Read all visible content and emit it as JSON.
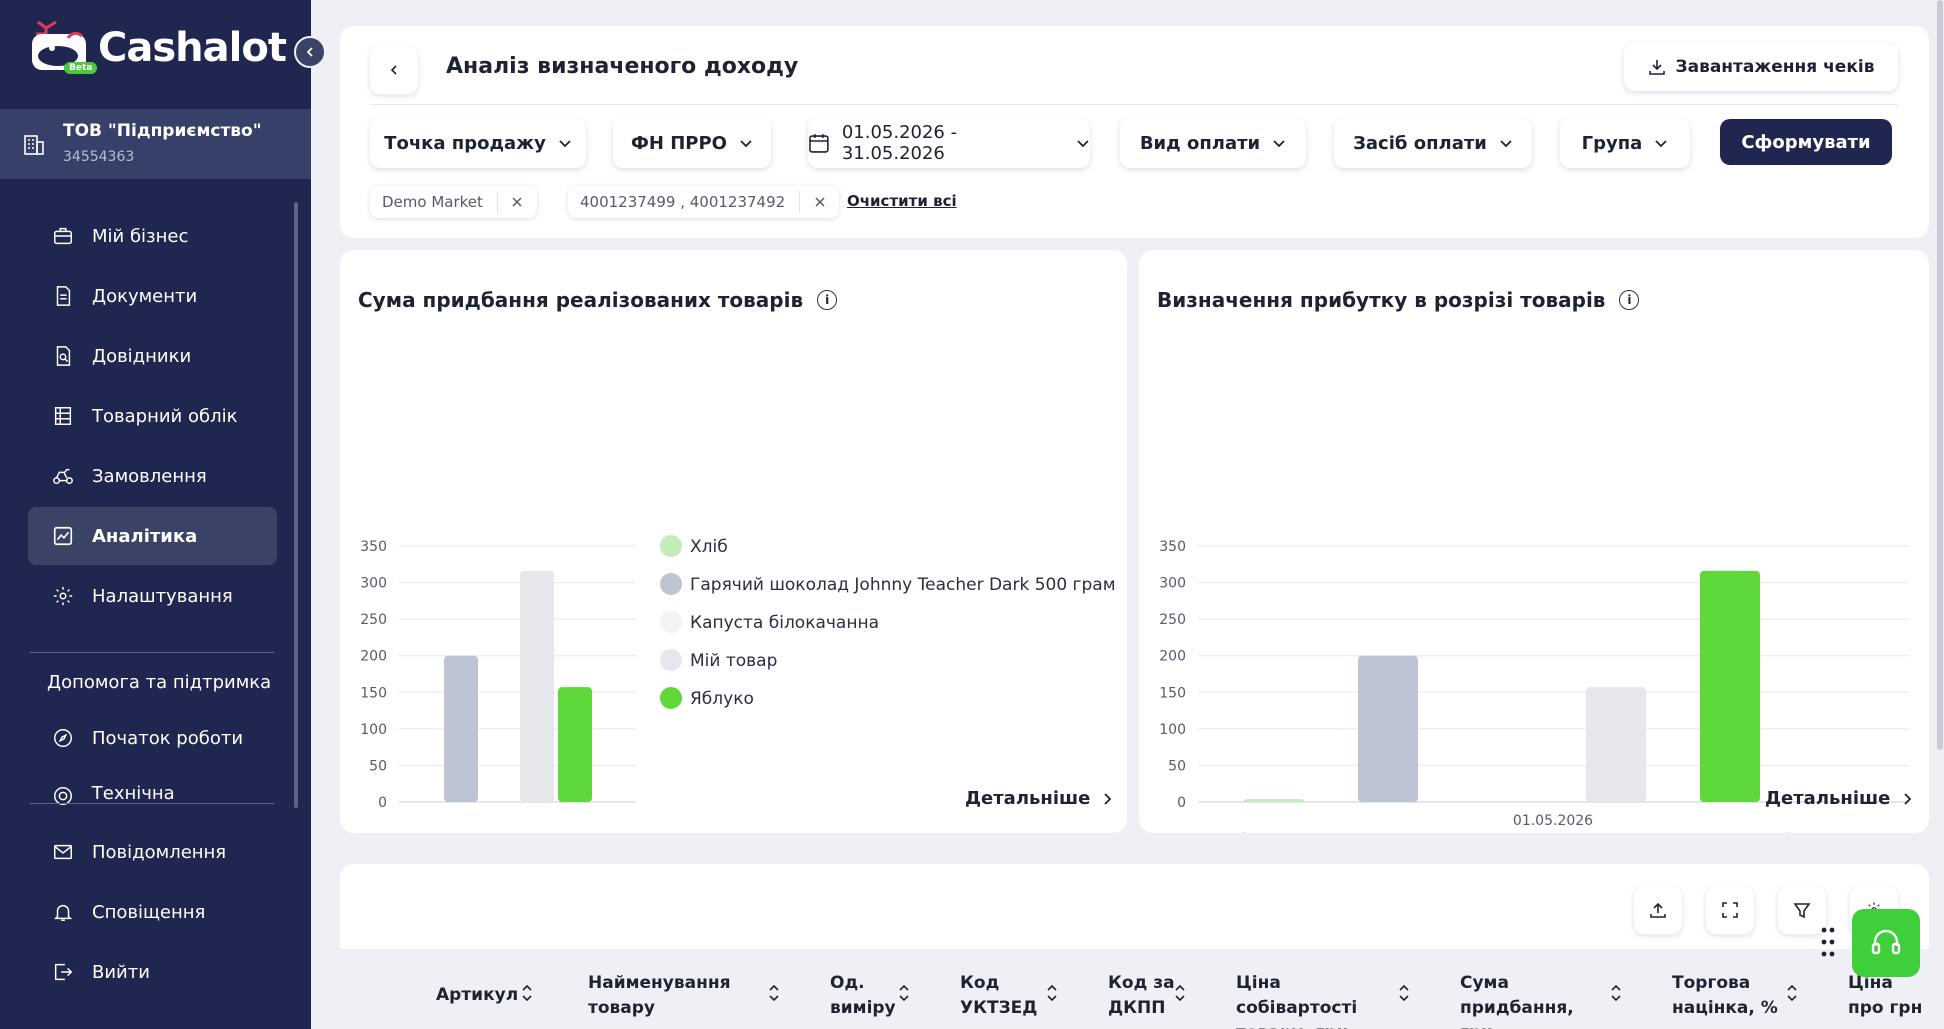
{
  "app": {
    "brand": "Cashalot",
    "beta": "Beta",
    "company": {
      "name": "ТОВ \"Підприємство\"",
      "code": "34554363"
    }
  },
  "sidebar": {
    "items": [
      {
        "label": "Мій бізнес",
        "icon": "briefcase-icon"
      },
      {
        "label": "Документи",
        "icon": "document-icon"
      },
      {
        "label": "Довідники",
        "icon": "directory-icon"
      },
      {
        "label": "Товарний облік",
        "icon": "warehouse-icon"
      },
      {
        "label": "Замовлення",
        "icon": "delivery-icon"
      },
      {
        "label": "Аналітика",
        "icon": "analytics-icon",
        "active": true
      },
      {
        "label": "Налаштування",
        "icon": "gear-icon"
      }
    ],
    "help_title": "Допомога та підтримка",
    "help_items": [
      {
        "label": "Початок роботи",
        "icon": "compass-icon"
      },
      {
        "label": "Технічна підтримка",
        "icon": "support-icon"
      }
    ],
    "bottom_items": [
      {
        "label": "Повідомлення",
        "icon": "mail-icon"
      },
      {
        "label": "Сповіщення",
        "icon": "bell-icon"
      },
      {
        "label": "Вийти",
        "icon": "logout-icon"
      }
    ]
  },
  "header": {
    "title": "Аналіз визначеного доходу",
    "download_label": "Завантаження чеків",
    "filters": {
      "point_of_sale": "Точка продажу",
      "fn_prro": "ФН ПРРО",
      "date_range": "01.05.2026 - 31.05.2026",
      "payment_type": "Вид оплати",
      "payment_method": "Засіб оплати",
      "group": "Група"
    },
    "submit_label": "Сформувати",
    "chips": [
      {
        "label": "Demo Market"
      },
      {
        "label": "4001237499 , 4001237492"
      }
    ],
    "clear_all": "Очистити всі"
  },
  "chart_data": [
    {
      "type": "bar",
      "title": "Сума придбання реалізованих товарів",
      "ylim": [
        0,
        350
      ],
      "yticks": [
        0,
        50,
        100,
        150,
        200,
        250,
        300,
        350
      ],
      "series": [
        {
          "name": "Хліб",
          "color": "#c4ecb8",
          "value": 0
        },
        {
          "name": "Гарячий шоколад Johnny Teacher Dark 500 грам",
          "color": "#bfc4d4",
          "value": 200
        },
        {
          "name": "Капуста білокачанна",
          "color": "#f2f3f6",
          "value": 0
        },
        {
          "name": "Мій товар",
          "color": "#e6e7ec",
          "value": 316
        },
        {
          "name": "Яблуко",
          "color": "#5fd83a",
          "value": 157
        }
      ],
      "legend_position": "right",
      "grid": true,
      "details_label": "Детальніше"
    },
    {
      "type": "bar",
      "title": "Визначення прибутку в розрізі товарів",
      "ylim": [
        0,
        350
      ],
      "yticks": [
        0,
        50,
        100,
        150,
        200,
        250,
        300,
        350
      ],
      "categories": [
        "01.05.2026"
      ],
      "series": [
        {
          "name": "Капуста білокачанна",
          "color": "#c4ecb8",
          "value": 4
        },
        {
          "name": "Гарячий шоколад Johnny Teacher Dark 500 грам",
          "color": "#bfc4d4",
          "value": 200
        },
        {
          "name": "Хліб",
          "color": "#f2f3f6",
          "value": 0
        },
        {
          "name": "Яблуко",
          "color": "#e6e7ec",
          "value": 157
        },
        {
          "name": "Мій товар",
          "color": "#5fd83a",
          "value": 316
        }
      ],
      "legend_position": "bottom",
      "grid": true,
      "details_label": "Детальніше"
    }
  ],
  "table": {
    "columns": [
      {
        "label": "Артикул"
      },
      {
        "label": "Найменування товару"
      },
      {
        "label": "Од. виміру"
      },
      {
        "label": "Код УКТЗЕД"
      },
      {
        "label": "Код за ДКПП"
      },
      {
        "label": "Ціна собівартості товару, грн"
      },
      {
        "label": "Сума придбання, грн"
      },
      {
        "label": "Торгова націнка, %"
      },
      {
        "label": "Ціна про грн"
      }
    ]
  },
  "colors": {
    "sidebar": "#1f2750",
    "accent_green": "#5fd83a",
    "primary": "#1f2750"
  }
}
